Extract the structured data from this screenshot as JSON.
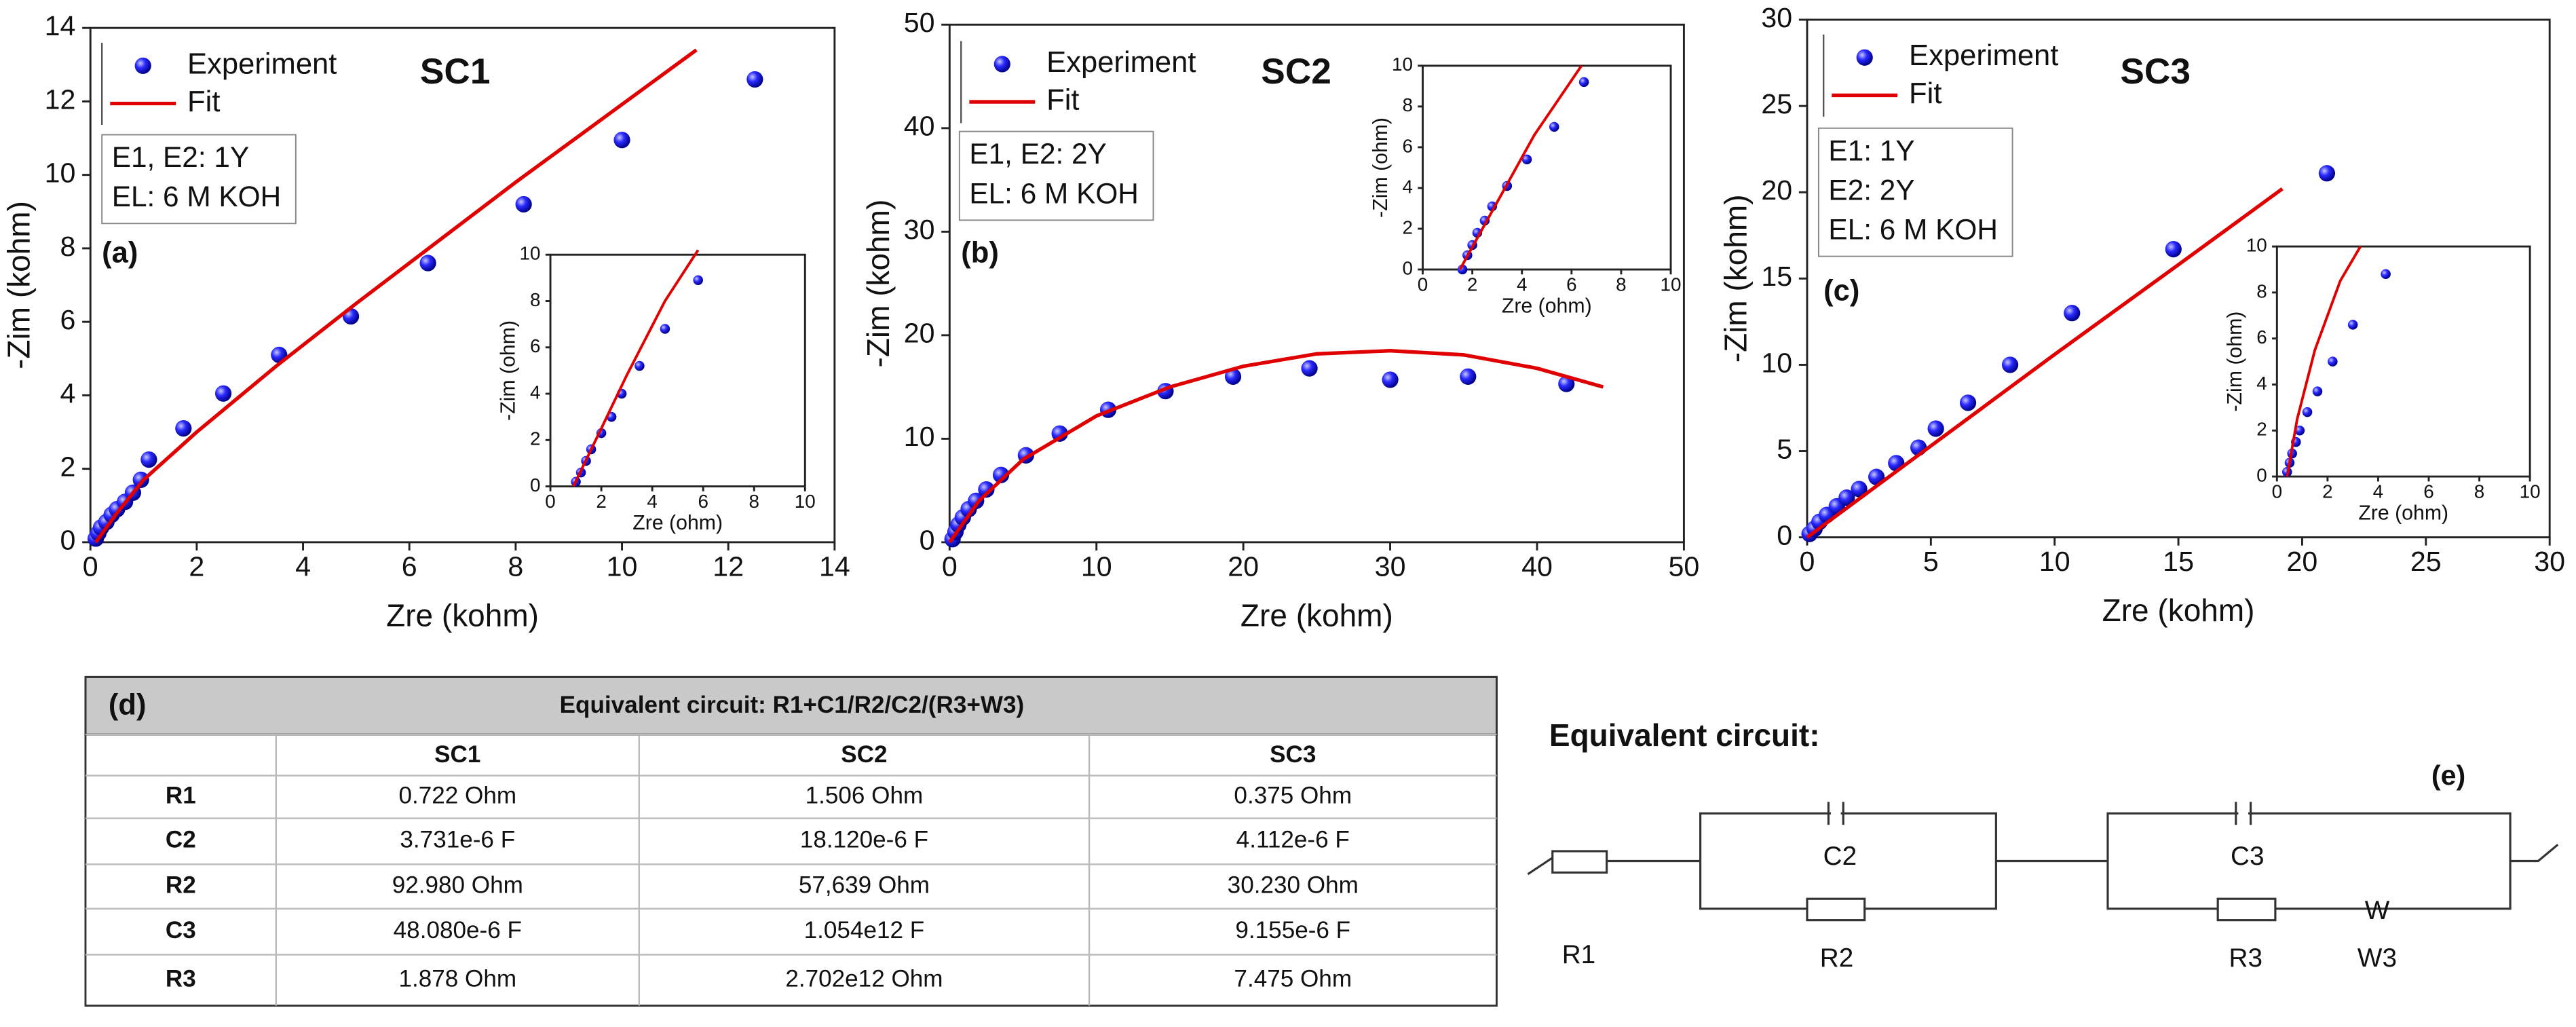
{
  "chart_data": [
    {
      "type": "scatter",
      "title": "SC1",
      "panel_label": "(a)",
      "annotations": [
        "E1, E2: 1Y",
        "EL: 6 M KOH"
      ],
      "xlabel": "Zre (kohm)",
      "ylabel": "-Zim (kohm)",
      "xlim": [
        0,
        14
      ],
      "ylim": [
        0,
        14
      ],
      "xticks": [
        0,
        2,
        4,
        6,
        8,
        10,
        12,
        14
      ],
      "yticks": [
        0,
        2,
        4,
        6,
        8,
        10,
        12,
        14
      ],
      "series": [
        {
          "name": "Experiment",
          "type": "scatter",
          "color": "#1a1aff",
          "x": [
            0.1,
            0.15,
            0.2,
            0.3,
            0.4,
            0.5,
            0.65,
            0.8,
            0.95,
            1.1,
            1.75,
            2.5,
            3.55,
            4.9,
            6.35,
            8.15,
            10.0,
            12.5
          ],
          "values": [
            0.1,
            0.25,
            0.4,
            0.55,
            0.75,
            0.9,
            1.1,
            1.35,
            1.7,
            2.25,
            3.1,
            4.05,
            5.1,
            6.15,
            7.6,
            9.2,
            10.95,
            12.6
          ]
        },
        {
          "name": "Fit",
          "type": "line",
          "color": "#e00000",
          "x": [
            0.1,
            0.5,
            1,
            2,
            3.5,
            5,
            8,
            11.4
          ],
          "values": [
            0,
            0.8,
            1.7,
            3,
            4.8,
            6.5,
            9.8,
            13.4
          ]
        }
      ],
      "inset": {
        "xlabel": "Zre (ohm)",
        "ylabel": "-Zim (ohm)",
        "xlim": [
          0,
          10
        ],
        "ylim": [
          0,
          10
        ],
        "xticks": [
          0,
          2,
          4,
          6,
          8,
          10
        ],
        "yticks": [
          0,
          2,
          4,
          6,
          8,
          10
        ],
        "series": [
          {
            "type": "scatter",
            "color": "#1a1aff",
            "x": [
              1,
              1.2,
              1.4,
              1.6,
              2,
              2.4,
              2.8,
              3.5,
              4.5,
              5.8
            ],
            "values": [
              0.2,
              0.6,
              1.1,
              1.6,
              2.3,
              3,
              4,
              5.2,
              6.8,
              8.9
            ]
          },
          {
            "type": "line",
            "color": "#e00000",
            "x": [
              0.9,
              2,
              3,
              4.5,
              5.8
            ],
            "values": [
              0,
              2.5,
              4.8,
              8,
              10.2
            ]
          }
        ]
      }
    },
    {
      "type": "scatter",
      "title": "SC2",
      "panel_label": "(b)",
      "annotations": [
        "E1, E2: 2Y",
        "EL: 6 M KOH"
      ],
      "xlabel": "Zre (kohm)",
      "ylabel": "-Zim (kohm)",
      "xlim": [
        0,
        50
      ],
      "ylim": [
        0,
        50
      ],
      "xticks": [
        0,
        10,
        20,
        30,
        40,
        50
      ],
      "yticks": [
        0,
        10,
        20,
        30,
        40,
        50
      ],
      "series": [
        {
          "name": "Experiment",
          "type": "scatter",
          "color": "#1a1aff",
          "x": [
            0.2,
            0.4,
            0.6,
            0.9,
            1.3,
            1.8,
            2.5,
            3.5,
            5.2,
            7.5,
            10.8,
            14.7,
            19.3,
            24.5,
            30,
            35.3,
            42
          ],
          "values": [
            0.3,
            1,
            1.7,
            2.4,
            3.2,
            4,
            5.1,
            6.5,
            8.4,
            10.5,
            12.8,
            14.6,
            16,
            16.8,
            15.7,
            16,
            15.3
          ]
        },
        {
          "name": "Fit",
          "type": "line",
          "color": "#e00000",
          "x": [
            0,
            2,
            5,
            10,
            15,
            20,
            25,
            30,
            35,
            40,
            44.5
          ],
          "values": [
            0,
            4,
            8,
            12.2,
            15,
            17,
            18.2,
            18.5,
            18.1,
            16.8,
            15
          ]
        }
      ],
      "inset": {
        "xlabel": "Zre (ohm)",
        "ylabel": "-Zim (ohm)",
        "xlim": [
          0,
          10
        ],
        "ylim": [
          0,
          10
        ],
        "xticks": [
          0,
          2,
          4,
          6,
          8,
          10
        ],
        "yticks": [
          0,
          2,
          4,
          6,
          8,
          10
        ],
        "series": [
          {
            "type": "scatter",
            "color": "#1a1aff",
            "x": [
              1.6,
              1.8,
              2,
              2.2,
              2.5,
              2.8,
              3.4,
              4.2,
              5.3,
              6.5
            ],
            "values": [
              0,
              0.7,
              1.2,
              1.8,
              2.4,
              3.1,
              4.1,
              5.4,
              7,
              9.2
            ]
          },
          {
            "type": "line",
            "color": "#e00000",
            "x": [
              1.5,
              3,
              4.5,
              6.4
            ],
            "values": [
              0,
              3.3,
              6.6,
              10
            ]
          }
        ]
      }
    },
    {
      "type": "scatter",
      "title": "SC3",
      "panel_label": "(c)",
      "annotations": [
        "E1: 1Y",
        "E2: 2Y",
        "EL: 6 M KOH"
      ],
      "xlabel": "Zre (kohm)",
      "ylabel": "-Zim (kohm)",
      "xlim": [
        0,
        30
      ],
      "ylim": [
        0,
        30
      ],
      "xticks": [
        0,
        5,
        10,
        15,
        20,
        25,
        30
      ],
      "yticks": [
        0,
        5,
        10,
        15,
        20,
        25,
        30
      ],
      "series": [
        {
          "name": "Experiment",
          "type": "scatter",
          "color": "#1a1aff",
          "x": [
            0.1,
            0.3,
            0.5,
            0.8,
            1.2,
            1.6,
            2.1,
            2.8,
            3.6,
            4.5,
            5.2,
            6.5,
            8.2,
            10.7,
            14.8,
            21
          ],
          "values": [
            0.2,
            0.5,
            0.9,
            1.3,
            1.8,
            2.3,
            2.8,
            3.5,
            4.3,
            5.2,
            6.3,
            7.8,
            10,
            13,
            16.7,
            21.1
          ]
        },
        {
          "name": "Fit",
          "type": "line",
          "color": "#e00000",
          "x": [
            0,
            5,
            10,
            15,
            19.2
          ],
          "values": [
            0,
            5.3,
            10.6,
            15.8,
            20.2
          ]
        }
      ],
      "inset": {
        "xlabel": "Zre (ohm)",
        "ylabel": "-Zim (ohm)",
        "xlim": [
          0,
          10
        ],
        "ylim": [
          0,
          10
        ],
        "xticks": [
          0,
          2,
          4,
          6,
          8,
          10
        ],
        "yticks": [
          0,
          2,
          4,
          6,
          8,
          10
        ],
        "series": [
          {
            "type": "scatter",
            "color": "#1a1aff",
            "x": [
              0.4,
              0.5,
              0.6,
              0.75,
              0.9,
              1.2,
              1.6,
              2.2,
              3,
              4.3
            ],
            "values": [
              0.2,
              0.6,
              1,
              1.5,
              2,
              2.8,
              3.7,
              5,
              6.6,
              8.8
            ]
          },
          {
            "type": "line",
            "color": "#e00000",
            "x": [
              0.4,
              0.8,
              1.5,
              2.5,
              3.3
            ],
            "values": [
              0,
              2.5,
              5.5,
              8.5,
              10
            ]
          }
        ]
      }
    }
  ],
  "table": {
    "label": "(d)",
    "title": "Equivalent circuit: R1+C1/R2/C2/(R3+W3)",
    "columns": [
      "SC1",
      "SC2",
      "SC3"
    ],
    "rows": [
      [
        "R1",
        "0.722 Ohm",
        "1.506 Ohm",
        "0.375 Ohm"
      ],
      [
        "C2",
        "3.731e-6 F",
        "18.120e-6 F",
        "4.112e-6 F"
      ],
      [
        "R2",
        "92.980 Ohm",
        "57,639 Ohm",
        "30.230 Ohm"
      ],
      [
        "C3",
        "48.080e-6 F",
        "1.054e12 F",
        "9.155e-6 F"
      ],
      [
        "R3",
        "1.878 Ohm",
        "2.702e12 Ohm",
        "7.475 Ohm"
      ]
    ]
  },
  "circuit": {
    "title": "Equivalent circuit:",
    "label": "(e)",
    "components": [
      "R1",
      "C2",
      "R2",
      "C3",
      "R3",
      "W",
      "W3"
    ]
  }
}
